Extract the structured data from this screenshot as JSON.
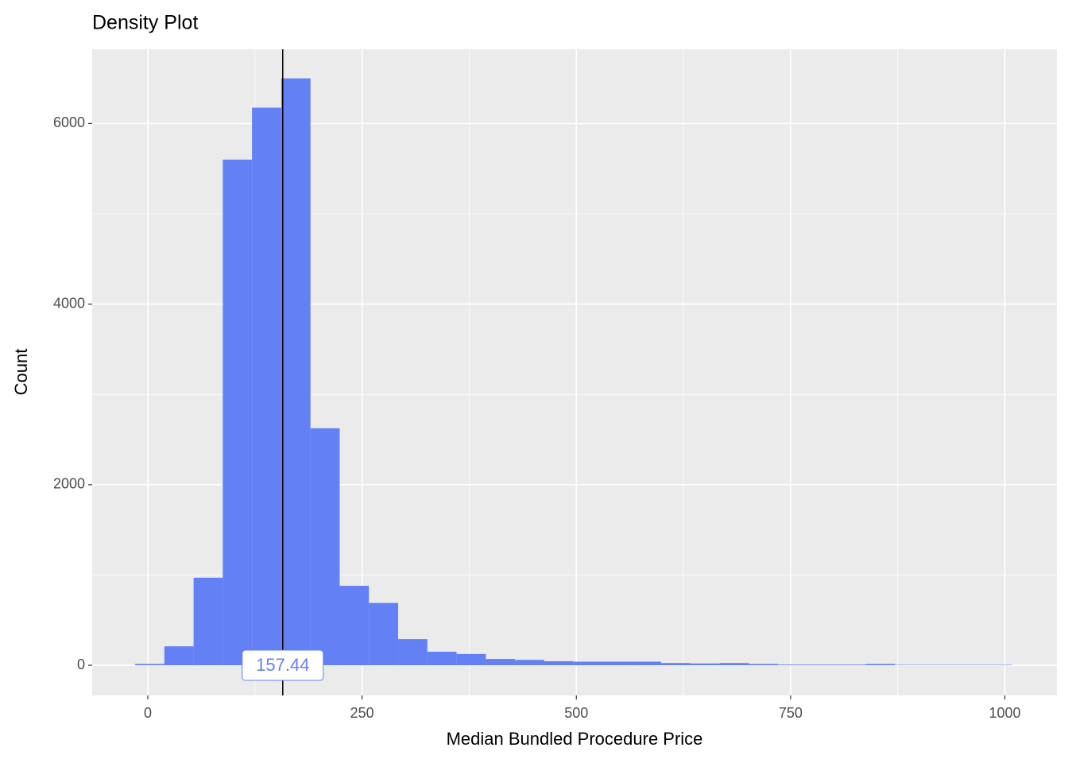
{
  "chart_data": {
    "type": "histogram",
    "title": "Density Plot",
    "x_label": "Median Bundled Procedure Price",
    "y_label": "Count",
    "bins": [
      -14.8,
      19.3,
      53.4,
      87.5,
      121.6,
      155.7,
      189.8,
      223.9,
      258.0,
      292.1,
      326.2,
      360.3,
      394.4,
      428.5,
      462.6,
      496.7,
      530.8,
      564.9,
      599.0,
      633.1,
      667.2,
      701.3,
      735.4,
      769.5,
      803.6,
      837.7,
      871.8,
      905.9,
      940.0,
      974.1,
      1008.2
    ],
    "values": [
      15,
      210,
      970,
      5600,
      6175,
      6500,
      2625,
      880,
      690,
      290,
      150,
      125,
      70,
      60,
      45,
      40,
      40,
      40,
      25,
      20,
      25,
      15,
      8,
      8,
      8,
      15,
      5,
      5,
      5,
      5
    ],
    "color": "#6380f5",
    "vline": 157.44,
    "xlim": [
      -64.9,
      1060.7
    ],
    "ylim": [
      -334,
      6822
    ],
    "xticks": [
      0,
      250,
      500,
      750,
      1000
    ],
    "yticks": [
      0,
      2000,
      4000,
      6000
    ],
    "x_minor_ticks": [
      125,
      375,
      625,
      875
    ],
    "y_minor_ticks": [
      1000,
      3000,
      5000
    ],
    "grid": true
  }
}
